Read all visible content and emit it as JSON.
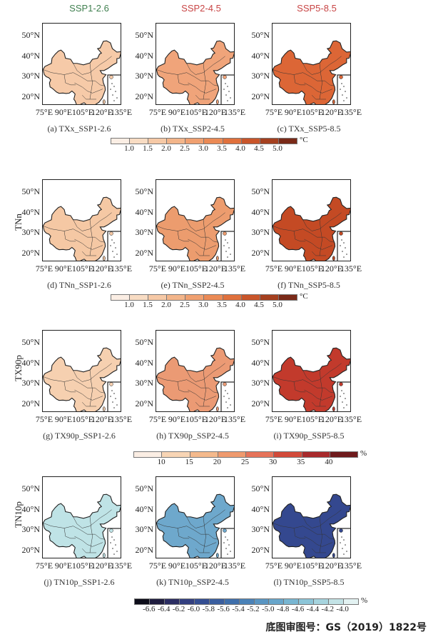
{
  "headers": [
    {
      "label": "SSP1-2.6",
      "color": "#3f7f4f"
    },
    {
      "label": "SSP2-4.5",
      "color": "#c84545"
    },
    {
      "label": "SSP5-8.5",
      "color": "#c84545"
    }
  ],
  "lat_ticks": [
    "50°N",
    "40°N",
    "30°N",
    "20°N"
  ],
  "lon_ticks": [
    "75°E",
    "90°E",
    "105°E",
    "120°E",
    "135°E"
  ],
  "rows": [
    {
      "label": "",
      "panels": [
        {
          "caption": "(a) TXx_SSP1-2.6",
          "fill": "#f6caa8"
        },
        {
          "caption": "(b) TXx_SSP2-4.5",
          "fill": "#f0a47a"
        },
        {
          "caption": "(c) TXx_SSP5-8.5",
          "fill": "#dc6636"
        }
      ],
      "colorbar": {
        "unit": "°C",
        "labels": [
          "1.0",
          "1.5",
          "2.0",
          "2.5",
          "3.0",
          "3.5",
          "4.0",
          "4.5",
          "5.0"
        ],
        "colors": [
          "#fbeee4",
          "#f8dcc3",
          "#f6c9a6",
          "#f3b58a",
          "#f0a070",
          "#eb8a55",
          "#e0703c",
          "#c9552a",
          "#a5401f",
          "#7a2a18"
        ]
      }
    },
    {
      "label": "TNn",
      "panels": [
        {
          "caption": "(d) TNn_SSP1-2.6",
          "fill": "#f5c8a4"
        },
        {
          "caption": "(e) TNn_SSP2-4.5",
          "fill": "#ec9c6e"
        },
        {
          "caption": "(f) TNn_SSP5-8.5",
          "fill": "#c44a24"
        }
      ],
      "colorbar": {
        "unit": "°C",
        "labels": [
          "1.0",
          "1.5",
          "2.0",
          "2.5",
          "3.0",
          "3.5",
          "4.0",
          "4.5",
          "5.0"
        ],
        "colors": [
          "#fbeee4",
          "#f8dcc3",
          "#f6c9a6",
          "#f3b58a",
          "#f0a070",
          "#eb8a55",
          "#e0703c",
          "#c9552a",
          "#a5401f",
          "#7a2a18"
        ]
      }
    },
    {
      "label": "TX90p",
      "panels": [
        {
          "caption": "(g) TX90p_SSP1-2.6",
          "fill": "#f6d0b0"
        },
        {
          "caption": "(h) TX90p_SSP2-4.5",
          "fill": "#eb9a74"
        },
        {
          "caption": "(i) TX90p_SSP5-8.5",
          "fill": "#c23a2c"
        }
      ],
      "colorbar": {
        "unit": "%",
        "labels": [
          "10",
          "15",
          "20",
          "25",
          "30",
          "35",
          "40"
        ],
        "colors": [
          "#fbeee4",
          "#f8d5b5",
          "#f4b98c",
          "#ef9a6e",
          "#e6735a",
          "#d24a3a",
          "#a82a2c",
          "#6e1a1c"
        ]
      }
    },
    {
      "label": "TN10p",
      "panels": [
        {
          "caption": "(j) TN10p_SSP1-2.6",
          "fill": "#bfe3e6"
        },
        {
          "caption": "(k) TN10p_SSP2-4.5",
          "fill": "#6ea8cc"
        },
        {
          "caption": "(l) TN10p_SSP5-8.5",
          "fill": "#34488f"
        }
      ],
      "colorbar": {
        "unit": "%",
        "labels": [
          "-6.6",
          "-6.4",
          "-6.2",
          "-6.0",
          "-5.8",
          "-5.6",
          "-5.4",
          "-5.2",
          "-5.0",
          "-4.8",
          "-4.6",
          "-4.4",
          "-4.2",
          "-4.0"
        ],
        "colors": [
          "#0d0d1a",
          "#1f1d3f",
          "#2b2d62",
          "#333f80",
          "#344e92",
          "#3a5e9f",
          "#3f6fab",
          "#4a82b8",
          "#5995c2",
          "#68a6cb",
          "#78b6d2",
          "#8cc5d8",
          "#a6d4de",
          "#c3e3e6",
          "#e3f2f2"
        ]
      }
    }
  ],
  "footer": "底图审图号：GS（2019）1822号"
}
